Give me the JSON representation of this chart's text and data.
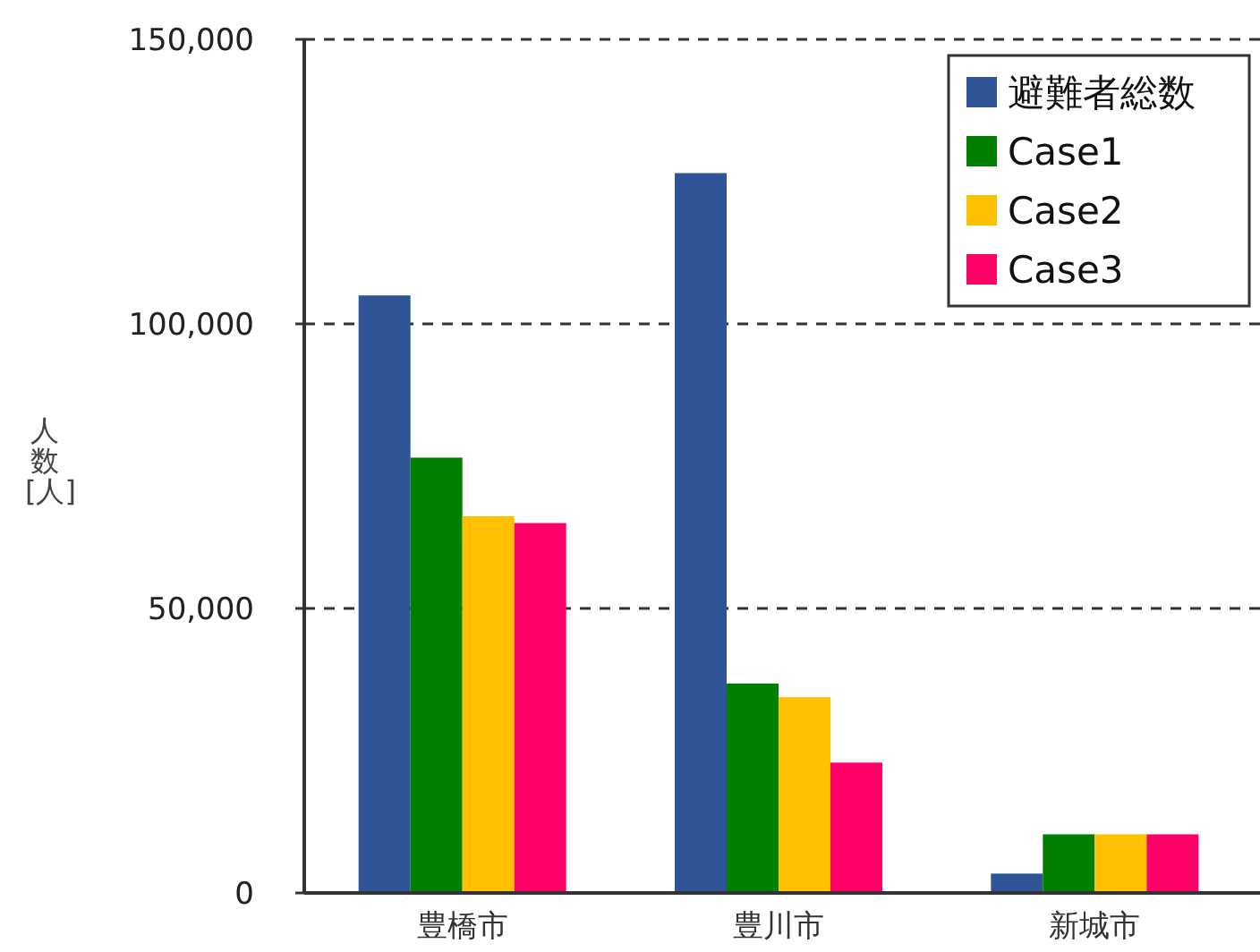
{
  "chart_data": {
    "type": "bar",
    "categories": [
      "豊橋市",
      "豊川市",
      "新城市"
    ],
    "ylabel": "人数[人]",
    "series": [
      {
        "name": "避難者総数",
        "color": "#2f5597",
        "values": [
          105000,
          126500,
          3400
        ]
      },
      {
        "name": "Case1",
        "color": "#008000",
        "values": [
          76500,
          36800,
          10300
        ]
      },
      {
        "name": "Case2",
        "color": "#ffc000",
        "values": [
          66200,
          34400,
          10300
        ]
      },
      {
        "name": "Case3",
        "color": "#ff0066",
        "values": [
          65000,
          22900,
          10300
        ]
      }
    ],
    "ylim": [
      0,
      150000
    ],
    "yticks": [
      {
        "value": 0,
        "label": "0"
      },
      {
        "value": 50000,
        "label": "50,000"
      },
      {
        "value": 100000,
        "label": "100,000"
      },
      {
        "value": 150000,
        "label": "150,000"
      }
    ],
    "grid": "y",
    "legend": "top right"
  }
}
